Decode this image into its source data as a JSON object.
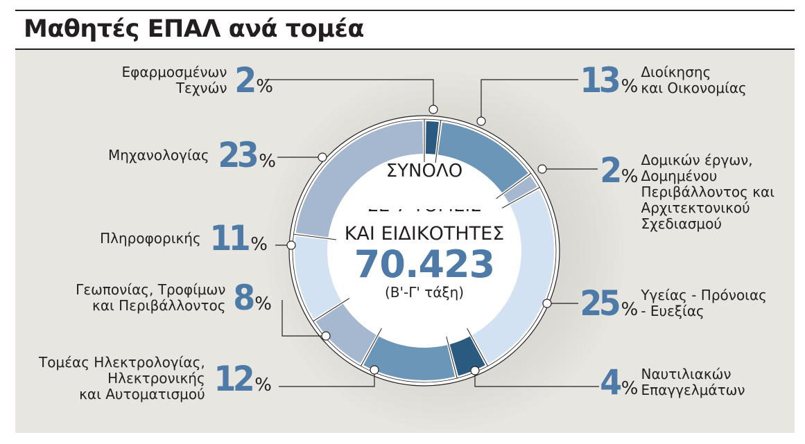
{
  "title": "Μαθητές ΕΠΑΛ ανά τομέα",
  "center": {
    "line1": "ΣΥΝΟΛΟ",
    "line2_hidden": "ΣΕ 7 ΤΟΜΕΙΣ",
    "line3": "ΚΑΙ ΕΙΔΙΚΟΤΗΤΕΣ",
    "total": "70.423",
    "note": "(Β'-Γ' τάξη)"
  },
  "percent_sign": "%",
  "colors": {
    "panel_bg": "#e8e6e0",
    "accent_number": "#4d7aa6",
    "dark_blue": "#2a5a80",
    "mid_blue": "#6b96b8",
    "grey_blue": "#a5b8d0",
    "light_blue": "#d3e2f3"
  },
  "labels": [
    {
      "pct": "2",
      "text": "Εφαρμοσμένων\nΤεχνών",
      "side": "left"
    },
    {
      "pct": "23",
      "text": "Μηχανολογίας",
      "side": "left"
    },
    {
      "pct": "11",
      "text": "Πληροφορικής",
      "side": "left"
    },
    {
      "pct": "8",
      "text": "Γεωπονίας, Τροφίμων\nκαι Περιβάλλοντος",
      "side": "left"
    },
    {
      "pct": "12",
      "text": "Τομέας Ηλεκτρολογίας,\nΗλεκτρονικής\nκαι Αυτοματισμού",
      "side": "left"
    },
    {
      "pct": "13",
      "text": "Διοίκησης\nκαι Οικονομίας",
      "side": "right"
    },
    {
      "pct": "2",
      "text": "Δομικών έργων,\nΔομημένου\nΠεριβάλλοντος και\nΑρχιτεκτονικού\nΣχεδιασμού",
      "side": "right"
    },
    {
      "pct": "25",
      "text": "Υγείας - Πρόνοιας\n- Ευεξίας",
      "side": "right"
    },
    {
      "pct": "4",
      "text": "Ναυτιλιακών\nΕπαγγελμάτων",
      "side": "right"
    }
  ],
  "chart_data": {
    "type": "pie",
    "variant": "donut",
    "title": "Μαθητές ΕΠΑΛ ανά τομέα",
    "center_label": "ΣΥΝΟΛΟ ΚΑΙ ΕΙΔΙΚΟΤΗΤΕΣ 70.423 (Β'-Γ' τάξη)",
    "total": 70423,
    "unit": "%",
    "categories": [
      "Εφαρμοσμένων Τεχνών",
      "Διοίκησης και Οικονομίας",
      "Δομικών έργων, Δομημένου Περιβάλλοντος και Αρχιτεκτονικού Σχεδιασμού",
      "Υγείας - Πρόνοιας - Ευεξίας",
      "Ναυτιλιακών Επαγγελμάτων",
      "Τομέας Ηλεκτρολογίας, Ηλεκτρονικής και Αυτοματισμού",
      "Γεωπονίας, Τροφίμων και Περιβάλλοντος",
      "Πληροφορικής",
      "Μηχανολογίας"
    ],
    "values": [
      2,
      13,
      2,
      25,
      4,
      12,
      8,
      11,
      23
    ],
    "slice_colors": [
      "#2a5a80",
      "#6b96b8",
      "#a5b8d0",
      "#d3e2f3",
      "#2a5a80",
      "#6b96b8",
      "#a5b8d0",
      "#d3e2f3",
      "#a5b8d0"
    ],
    "start_angle_deg": 0,
    "direction": "clockwise"
  }
}
